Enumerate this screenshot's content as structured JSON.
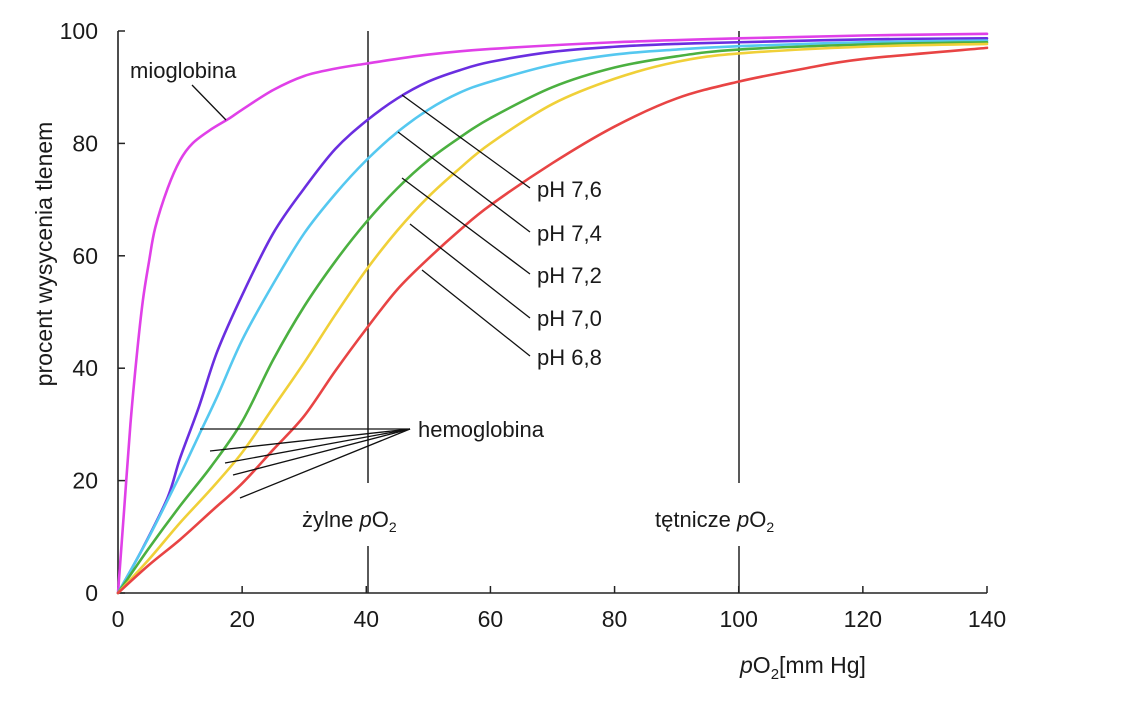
{
  "chart_data": {
    "type": "line",
    "xlabel": {
      "prefix_italic": "p",
      "main": "O",
      "sub": "2",
      "suffix": "[mm Hg]"
    },
    "ylabel": "procent wysycenia tlenem",
    "xlim": [
      0,
      140
    ],
    "ylim": [
      0,
      100
    ],
    "x_ticks": [
      0,
      20,
      40,
      60,
      80,
      100,
      120,
      140
    ],
    "y_ticks": [
      0,
      20,
      40,
      60,
      80,
      100
    ],
    "grid": false,
    "series": [
      {
        "name": "mioglobina",
        "color": "#e040e8",
        "x": [
          0,
          1,
          2,
          3,
          4,
          5,
          6,
          8,
          10,
          12,
          15,
          18,
          20,
          25,
          30,
          35,
          40,
          50,
          60,
          80,
          100,
          120,
          140
        ],
        "y": [
          0,
          15,
          30,
          42,
          52,
          59,
          65,
          72,
          77,
          80,
          82.5,
          84.5,
          86,
          89.5,
          92,
          93.3,
          94.2,
          95.8,
          96.8,
          98,
          98.7,
          99.2,
          99.5
        ]
      },
      {
        "name": "pH 7,6",
        "color": "#6a2ee0",
        "x": [
          0,
          4,
          8,
          10,
          13,
          16,
          20,
          25,
          30,
          35,
          40,
          45,
          50,
          55,
          60,
          70,
          80,
          90,
          100,
          120,
          140
        ],
        "y": [
          0,
          8,
          17,
          24,
          33,
          43,
          53,
          64,
          72,
          79,
          84,
          88,
          91,
          93,
          94.5,
          96.3,
          97.2,
          97.7,
          98,
          98.5,
          98.7
        ]
      },
      {
        "name": "pH 7,4",
        "color": "#55c8f0",
        "x": [
          0,
          5,
          10,
          13,
          16,
          20,
          25,
          30,
          35,
          40,
          45,
          50,
          55,
          60,
          70,
          80,
          90,
          100,
          120,
          140
        ],
        "y": [
          0,
          10,
          21,
          28,
          35,
          45,
          55,
          64,
          71,
          77,
          82,
          86,
          89,
          91,
          94,
          95.8,
          96.7,
          97.3,
          98,
          98.3
        ]
      },
      {
        "name": "pH 7,2",
        "color": "#4bb040",
        "x": [
          0,
          5,
          10,
          15,
          20,
          25,
          30,
          35,
          40,
          45,
          50,
          55,
          60,
          70,
          80,
          90,
          100,
          120,
          140
        ],
        "y": [
          0,
          8,
          15.5,
          22.5,
          30.5,
          41.5,
          51,
          59,
          66,
          72,
          77,
          81,
          84.5,
          90,
          93.5,
          95.5,
          96.7,
          97.6,
          98
        ]
      },
      {
        "name": "pH 7,0",
        "color": "#f0d038",
        "x": [
          0,
          5,
          10,
          15,
          20,
          25,
          30,
          35,
          40,
          45,
          50,
          55,
          60,
          70,
          80,
          90,
          100,
          120,
          140
        ],
        "y": [
          0,
          6,
          12.5,
          18.5,
          25,
          33,
          41,
          49.5,
          57.5,
          64.5,
          70.5,
          75.5,
          80,
          87,
          91.5,
          94.5,
          96,
          97.2,
          97.7
        ]
      },
      {
        "name": "pH 6,8",
        "color": "#e84444",
        "x": [
          0,
          5,
          10,
          15,
          20,
          25,
          30,
          35,
          40,
          45,
          50,
          55,
          60,
          70,
          80,
          90,
          100,
          110,
          120,
          140
        ],
        "y": [
          0,
          5,
          9.5,
          14.5,
          19.5,
          25.5,
          31.5,
          39.5,
          47,
          54,
          59.5,
          64.5,
          69,
          76.5,
          83,
          88,
          91,
          93.2,
          95,
          97
        ]
      }
    ],
    "vlines": [
      {
        "x": 40,
        "label_plain": "żylne ",
        "label_italic": "p",
        "label_main": "O",
        "label_sub": "2"
      },
      {
        "x": 100,
        "label_plain": "tętnicze ",
        "label_italic": "p",
        "label_main": "O",
        "label_sub": "2"
      }
    ],
    "annotations": {
      "myoglobin_label": "mioglobina",
      "hemoglobin_label": "hemoglobina",
      "ph_labels": [
        "pH 7,6",
        "pH 7,4",
        "pH 7,2",
        "pH 7,0",
        "pH 6,8"
      ]
    }
  }
}
